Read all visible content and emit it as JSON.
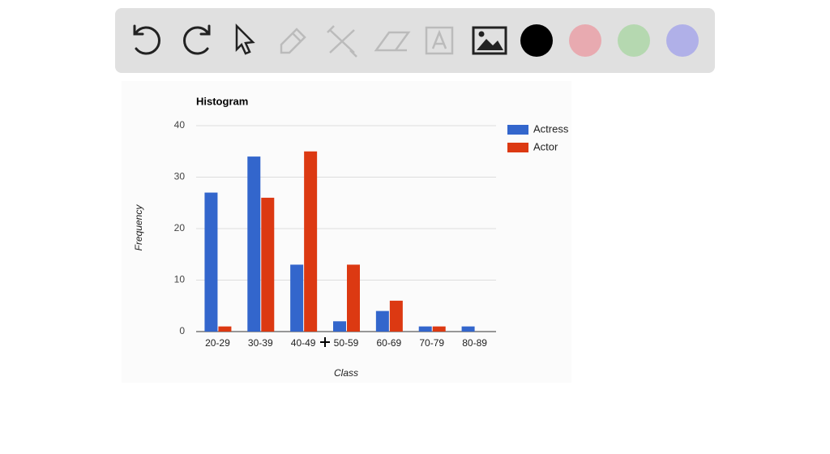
{
  "chart_data": {
    "type": "bar",
    "title": "Histogram",
    "x_label": "Class",
    "y_label": "Frequency",
    "categories": [
      "20-29",
      "30-39",
      "40-49",
      "50-59",
      "60-69",
      "70-79",
      "80-89"
    ],
    "series": [
      {
        "name": "Actress",
        "color": "#3366cc",
        "values": [
          27,
          34,
          13,
          2,
          4,
          1,
          1
        ]
      },
      {
        "name": "Actor",
        "color": "#dc3912",
        "values": [
          1,
          26,
          35,
          13,
          6,
          1,
          0
        ]
      }
    ],
    "ylim": [
      0,
      40
    ],
    "yticks": [
      0,
      10,
      20,
      30,
      40
    ],
    "grid": true,
    "legend": "right"
  }
}
